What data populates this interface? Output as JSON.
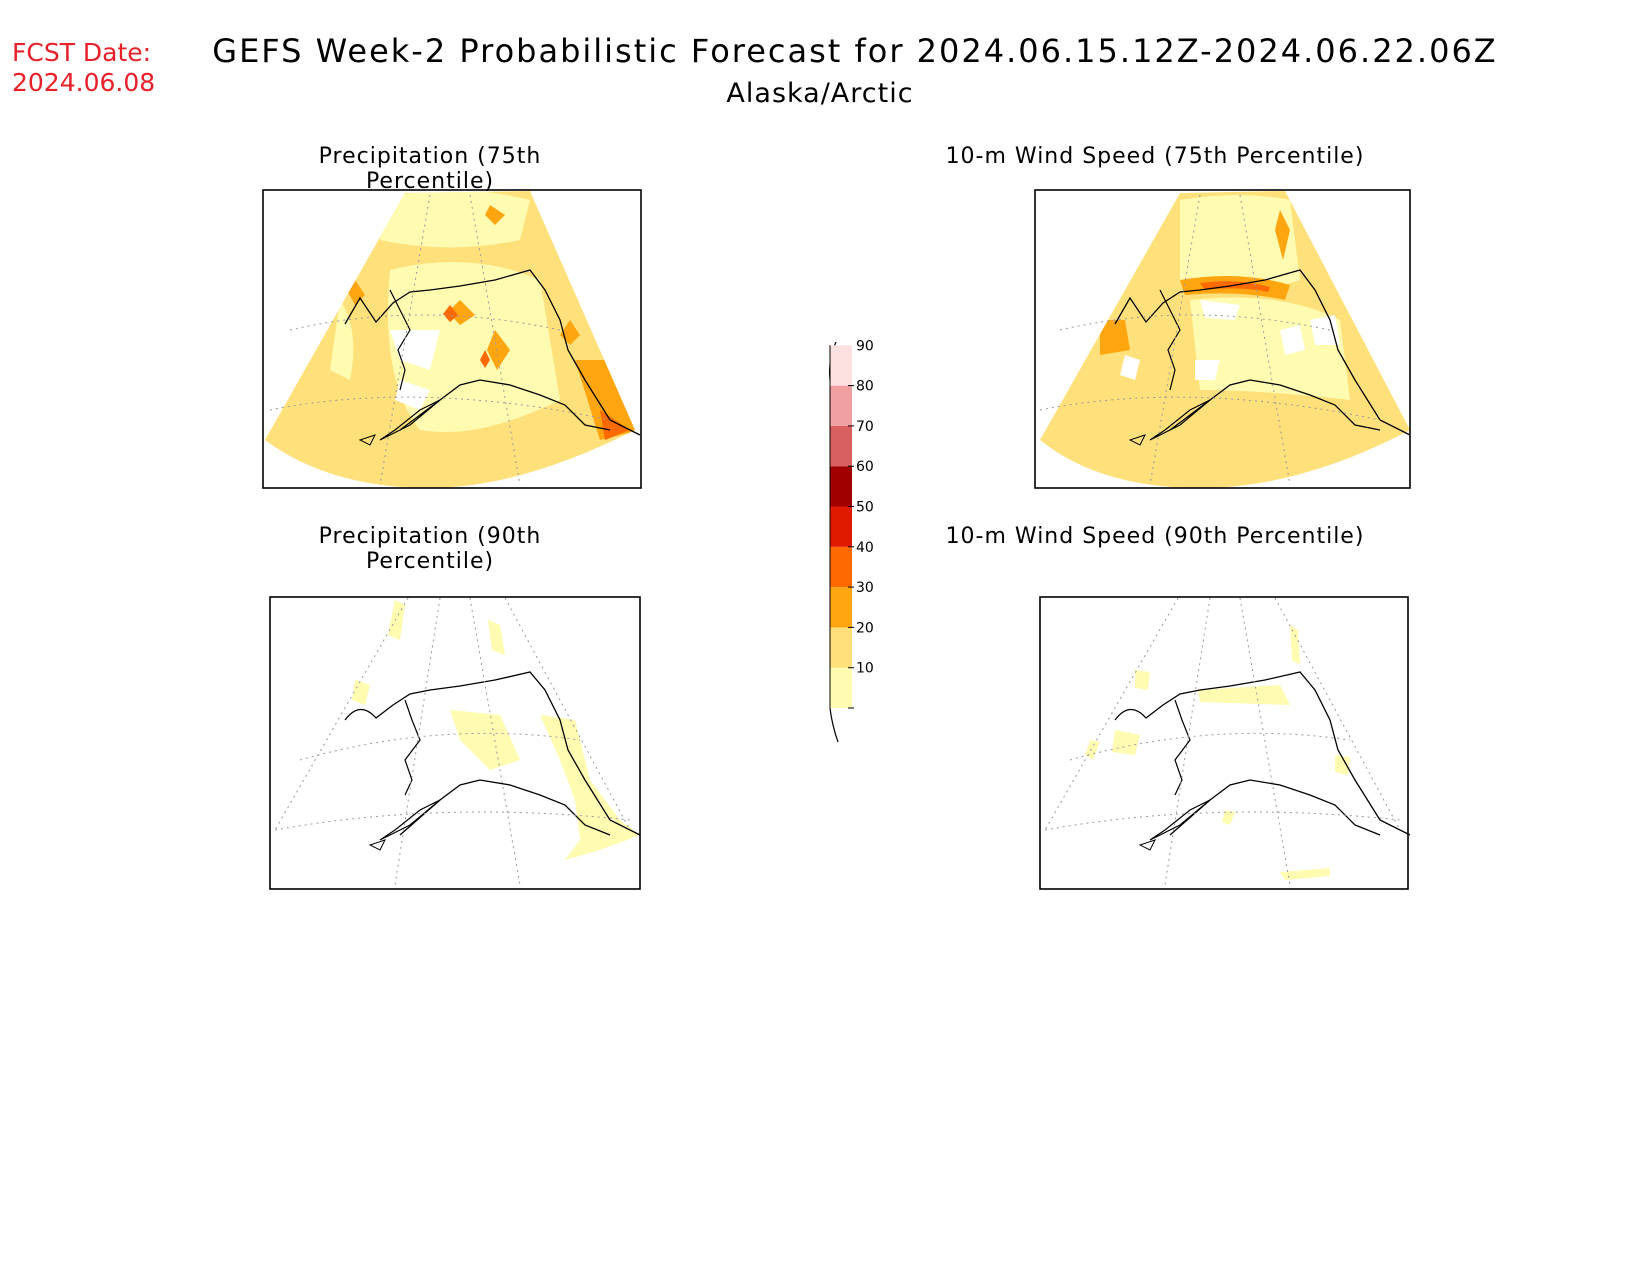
{
  "header": {
    "fcst_label": "FCST Date:",
    "fcst_date": "2024.06.08",
    "title": "GEFS Week-2 Probabilistic Forecast for 2024.06.15.12Z-2024.06.22.06Z",
    "subtitle": "Alaska/Arctic"
  },
  "panels": [
    {
      "title": "Precipitation (75th Percentile)"
    },
    {
      "title": "10-m Wind Speed (75th Percentile)"
    },
    {
      "title": "Precipitation (90th Percentile)"
    },
    {
      "title": "10-m Wind Speed (90th Percentile)"
    }
  ],
  "colorbar": {
    "levels": [
      {
        "label": "10",
        "color": "#fffbb0"
      },
      {
        "label": "20",
        "color": "#ffe07a"
      },
      {
        "label": "30",
        "color": "#ffa510"
      },
      {
        "label": "40",
        "color": "#ff6a00"
      },
      {
        "label": "50",
        "color": "#e01a00"
      },
      {
        "label": "60",
        "color": "#a00000"
      },
      {
        "label": "70",
        "color": "#d86060"
      },
      {
        "label": "80",
        "color": "#f0a0a0"
      },
      {
        "label": "90",
        "color": "#fde0e0"
      }
    ]
  }
}
